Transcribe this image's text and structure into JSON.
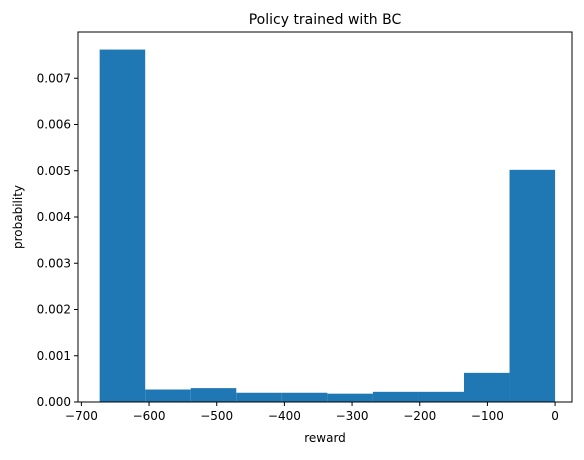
{
  "chart_data": {
    "type": "bar",
    "title": "Policy trained with BC",
    "xlabel": "reward",
    "ylabel": "probability",
    "xlim": [
      -705,
      25
    ],
    "ylim": [
      0,
      0.008
    ],
    "grid": false,
    "bar_color": "#1f77b4",
    "x_ticks": [
      -700,
      -600,
      -500,
      -400,
      -300,
      -200,
      -100,
      0
    ],
    "x_tick_labels": [
      "−700",
      "−600",
      "−500",
      "−400",
      "−300",
      "−200",
      "−100",
      "0"
    ],
    "y_ticks": [
      0,
      0.001,
      0.002,
      0.003,
      0.004,
      0.005,
      0.006,
      0.007
    ],
    "y_tick_labels": [
      "0.000",
      "0.001",
      "0.002",
      "0.003",
      "0.004",
      "0.005",
      "0.006",
      "0.007"
    ],
    "bins": [
      {
        "start": -673,
        "end": -605.7,
        "value": 0.00762
      },
      {
        "start": -605.7,
        "end": -538.4,
        "value": 0.00027
      },
      {
        "start": -538.4,
        "end": -471.1,
        "value": 0.0003
      },
      {
        "start": -471.1,
        "end": -403.8,
        "value": 0.0002
      },
      {
        "start": -403.8,
        "end": -336.5,
        "value": 0.0002
      },
      {
        "start": -336.5,
        "end": -269.2,
        "value": 0.00018
      },
      {
        "start": -269.2,
        "end": -201.9,
        "value": 0.00022
      },
      {
        "start": -201.9,
        "end": -134.6,
        "value": 0.00022
      },
      {
        "start": -134.6,
        "end": -67.3,
        "value": 0.00063
      },
      {
        "start": -67.3,
        "end": 0,
        "value": 0.00502
      }
    ]
  }
}
